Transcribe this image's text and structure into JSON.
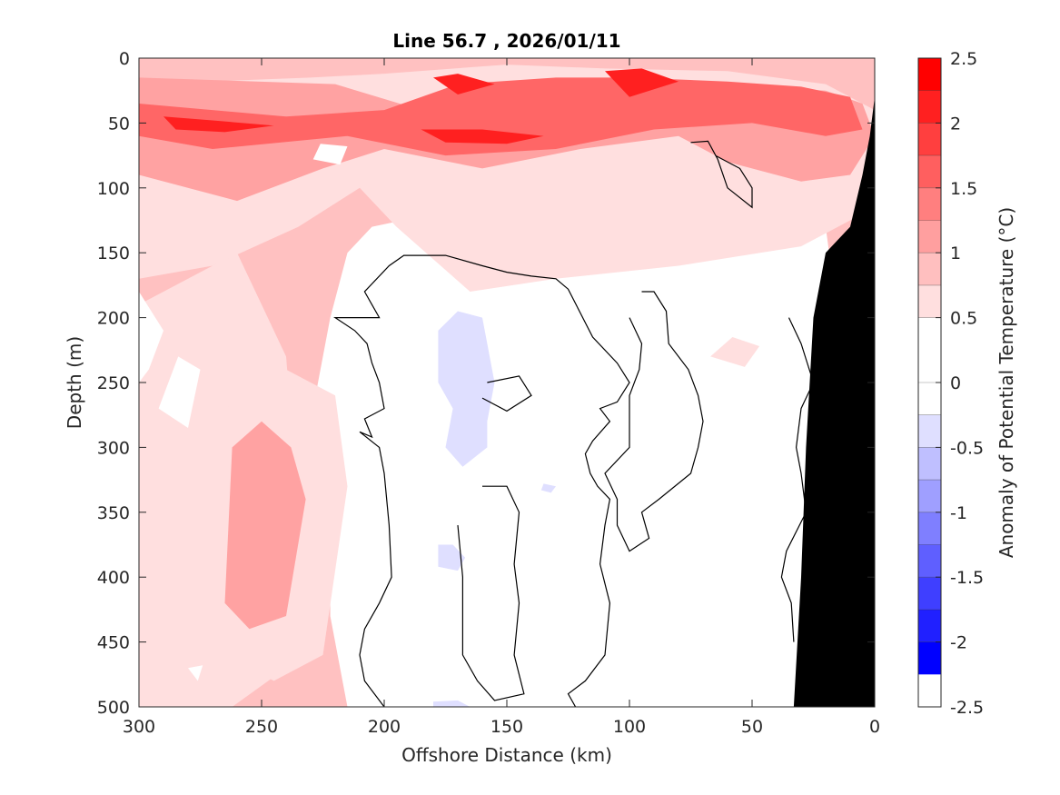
{
  "chart_data": {
    "type": "heatmap",
    "title": "Line 56.7 , 2026/01/11",
    "xlabel": "Offshore Distance (km)",
    "ylabel": "Depth (m)",
    "colorbar_label": "Anomaly of Potential Temperature (°C)",
    "xlim": [
      300,
      0
    ],
    "ylim": [
      0,
      500
    ],
    "x_reversed": true,
    "y_reversed": true,
    "xticks": [
      300,
      250,
      200,
      150,
      100,
      50,
      0
    ],
    "yticks": [
      0,
      50,
      100,
      150,
      200,
      250,
      300,
      350,
      400,
      450,
      500
    ],
    "xtick_labels": [
      "300",
      "250",
      "200",
      "150",
      "100",
      "50",
      "0"
    ],
    "ytick_labels": [
      "0",
      "50",
      "100",
      "150",
      "200",
      "250",
      "300",
      "350",
      "400",
      "450",
      "500"
    ],
    "colorbar": {
      "range": [
        -2.5,
        2.5
      ],
      "step": 0.25,
      "tick_values": [
        2.5,
        2,
        1.5,
        1,
        0.5,
        0,
        -0.5,
        -1,
        -1.5,
        -2,
        -2.5
      ],
      "tick_labels": [
        "2.5",
        "2",
        "1.5",
        "1",
        "0.5",
        "0",
        "-0.5",
        "-1",
        "-1.5",
        "-2",
        "-2.5"
      ],
      "colors": [
        "#ff0000",
        "#ff2020",
        "#ff3f3f",
        "#ff5f5f",
        "#ff7f7f",
        "#ff9f9f",
        "#ffbfbf",
        "#ffdfdf",
        "#ffffff",
        "#ffffff",
        "#dfdfff",
        "#bfbfff",
        "#9f9fff",
        "#7f7fff",
        "#5f5fff",
        "#3f3fff",
        "#2020ff",
        "#0000ff"
      ]
    },
    "regions": [
      {
        "level": 0.5,
        "points": [
          [
            300,
            20
          ],
          [
            230,
            15
          ],
          [
            200,
            12
          ],
          [
            150,
            5
          ],
          [
            110,
            8
          ],
          [
            60,
            10
          ],
          [
            20,
            20
          ],
          [
            0,
            40
          ],
          [
            5,
            120
          ],
          [
            30,
            145
          ],
          [
            80,
            160
          ],
          [
            130,
            170
          ],
          [
            165,
            180
          ],
          [
            195,
            130
          ],
          [
            210,
            100
          ],
          [
            235,
            130
          ],
          [
            270,
            160
          ],
          [
            300,
            170
          ]
        ]
      },
      {
        "level": 0.5,
        "points": [
          [
            240,
            240
          ],
          [
            265,
            270
          ],
          [
            275,
            420
          ],
          [
            265,
            460
          ],
          [
            245,
            480
          ],
          [
            225,
            460
          ],
          [
            215,
            330
          ],
          [
            220,
            260
          ]
        ]
      },
      {
        "level": 0.5,
        "points": [
          [
            58,
            215
          ],
          [
            47,
            222
          ],
          [
            53,
            238
          ],
          [
            67,
            230
          ]
        ]
      },
      {
        "level": 1.0,
        "points": [
          [
            300,
            15
          ],
          [
            220,
            20
          ],
          [
            185,
            40
          ],
          [
            150,
            30
          ],
          [
            120,
            18
          ],
          [
            70,
            20
          ],
          [
            20,
            25
          ],
          [
            5,
            35
          ],
          [
            0,
            60
          ],
          [
            10,
            90
          ],
          [
            30,
            95
          ],
          [
            60,
            80
          ],
          [
            80,
            60
          ],
          [
            120,
            70
          ],
          [
            160,
            85
          ],
          [
            200,
            70
          ],
          [
            225,
            85
          ],
          [
            260,
            110
          ],
          [
            300,
            90
          ]
        ]
      },
      {
        "level": 1.0,
        "points": [
          [
            250,
            280
          ],
          [
            262,
            300
          ],
          [
            265,
            420
          ],
          [
            255,
            440
          ],
          [
            240,
            430
          ],
          [
            232,
            340
          ],
          [
            238,
            300
          ]
        ]
      },
      {
        "level": 1.5,
        "points": [
          [
            300,
            35
          ],
          [
            240,
            45
          ],
          [
            200,
            40
          ],
          [
            170,
            20
          ],
          [
            130,
            15
          ],
          [
            100,
            15
          ],
          [
            60,
            18
          ],
          [
            30,
            22
          ],
          [
            10,
            30
          ],
          [
            5,
            55
          ],
          [
            20,
            60
          ],
          [
            50,
            50
          ],
          [
            90,
            55
          ],
          [
            130,
            70
          ],
          [
            175,
            75
          ],
          [
            215,
            60
          ],
          [
            270,
            70
          ],
          [
            300,
            60
          ]
        ]
      },
      {
        "level": 2.0,
        "points": [
          [
            290,
            45
          ],
          [
            270,
            48
          ],
          [
            245,
            52
          ],
          [
            265,
            57
          ],
          [
            285,
            55
          ]
        ]
      },
      {
        "level": 2.0,
        "points": [
          [
            185,
            55
          ],
          [
            160,
            55
          ],
          [
            135,
            60
          ],
          [
            150,
            66
          ],
          [
            175,
            65
          ]
        ]
      },
      {
        "level": 2.0,
        "points": [
          [
            180,
            15
          ],
          [
            170,
            12
          ],
          [
            155,
            20
          ],
          [
            170,
            28
          ]
        ]
      },
      {
        "level": 2.0,
        "points": [
          [
            110,
            10
          ],
          [
            95,
            8
          ],
          [
            80,
            18
          ],
          [
            100,
            30
          ]
        ]
      },
      {
        "level": 0.0,
        "points": [
          [
            300,
            180
          ],
          [
            290,
            210
          ],
          [
            296,
            240
          ],
          [
            300,
            250
          ]
        ]
      },
      {
        "level": 0.0,
        "points": [
          [
            284,
            230
          ],
          [
            275,
            240
          ],
          [
            280,
            285
          ],
          [
            292,
            270
          ]
        ]
      },
      {
        "level": 0.0,
        "points": [
          [
            226,
            66
          ],
          [
            215,
            68
          ],
          [
            218,
            82
          ],
          [
            229,
            78
          ]
        ]
      },
      {
        "level": 0.0,
        "points": [
          [
            280,
            470
          ],
          [
            274,
            468
          ],
          [
            276,
            480
          ]
        ]
      },
      {
        "level": 0.0,
        "points": [
          [
            215,
            192
          ],
          [
            211,
            194
          ],
          [
            214,
            208
          ]
        ]
      },
      {
        "level": -0.5,
        "points": [
          [
            170,
            195
          ],
          [
            178,
            210
          ],
          [
            178,
            250
          ],
          [
            172,
            270
          ],
          [
            175,
            300
          ],
          [
            168,
            315
          ],
          [
            158,
            300
          ],
          [
            158,
            280
          ],
          [
            155,
            250
          ],
          [
            160,
            200
          ]
        ]
      },
      {
        "level": -0.5,
        "points": [
          [
            178,
            375
          ],
          [
            172,
            375
          ],
          [
            167,
            385
          ],
          [
            170,
            395
          ],
          [
            178,
            392
          ]
        ]
      },
      {
        "level": -0.5,
        "points": [
          [
            135,
            328
          ],
          [
            130,
            330
          ],
          [
            132,
            335
          ],
          [
            136,
            333
          ]
        ]
      },
      {
        "level": -0.5,
        "points": [
          [
            180,
            496
          ],
          [
            170,
            495
          ],
          [
            165,
            500
          ],
          [
            180,
            500
          ]
        ]
      }
    ],
    "contours_zero": [
      [
        [
          200,
          500
        ],
        [
          208,
          480
        ],
        [
          210,
          460
        ],
        [
          208,
          440
        ],
        [
          202,
          420
        ],
        [
          197,
          400
        ],
        [
          198,
          360
        ],
        [
          200,
          320
        ],
        [
          202,
          300
        ],
        [
          210,
          288
        ],
        [
          205,
          292
        ],
        [
          208,
          278
        ],
        [
          200,
          270
        ],
        [
          202,
          250
        ],
        [
          205,
          235
        ],
        [
          207,
          220
        ],
        [
          212,
          210
        ],
        [
          220,
          200
        ],
        [
          202,
          200
        ],
        [
          205,
          190
        ],
        [
          208,
          180
        ],
        [
          198,
          160
        ],
        [
          192,
          152
        ],
        [
          175,
          152
        ],
        [
          160,
          160
        ],
        [
          150,
          165
        ],
        [
          140,
          168
        ],
        [
          130,
          170
        ],
        [
          125,
          178
        ],
        [
          115,
          215
        ],
        [
          105,
          235
        ],
        [
          100,
          250
        ],
        [
          105,
          265
        ],
        [
          112,
          270
        ],
        [
          108,
          280
        ],
        [
          115,
          295
        ],
        [
          118,
          305
        ],
        [
          116,
          320
        ],
        [
          113,
          330
        ],
        [
          108,
          340
        ],
        [
          110,
          360
        ],
        [
          112,
          390
        ],
        [
          108,
          420
        ],
        [
          110,
          460
        ],
        [
          118,
          480
        ],
        [
          125,
          490
        ],
        [
          122,
          500
        ]
      ],
      [
        [
          35,
          200
        ],
        [
          30,
          220
        ],
        [
          25,
          250
        ],
        [
          30,
          270
        ],
        [
          32,
          300
        ],
        [
          30,
          320
        ],
        [
          28,
          350
        ],
        [
          36,
          380
        ],
        [
          38,
          400
        ],
        [
          34,
          420
        ],
        [
          33,
          450
        ]
      ],
      [
        [
          158,
          250
        ],
        [
          145,
          245
        ],
        [
          140,
          260
        ],
        [
          150,
          272
        ],
        [
          160,
          262
        ]
      ],
      [
        [
          160,
          330
        ],
        [
          150,
          330
        ],
        [
          145,
          350
        ],
        [
          147,
          390
        ],
        [
          145,
          420
        ],
        [
          147,
          460
        ],
        [
          143,
          490
        ],
        [
          155,
          495
        ],
        [
          162,
          480
        ],
        [
          168,
          460
        ],
        [
          168,
          400
        ],
        [
          170,
          360
        ]
      ],
      [
        [
          95,
          180
        ],
        [
          90,
          180
        ],
        [
          85,
          195
        ],
        [
          84,
          220
        ],
        [
          76,
          240
        ],
        [
          72,
          260
        ],
        [
          70,
          280
        ],
        [
          72,
          300
        ],
        [
          75,
          320
        ],
        [
          88,
          340
        ],
        [
          95,
          350
        ],
        [
          92,
          370
        ],
        [
          100,
          380
        ],
        [
          105,
          360
        ],
        [
          105,
          340
        ],
        [
          110,
          320
        ],
        [
          100,
          300
        ],
        [
          100,
          280
        ],
        [
          100,
          260
        ],
        [
          96,
          240
        ],
        [
          95,
          220
        ],
        [
          100,
          200
        ]
      ],
      [
        [
          75,
          65
        ],
        [
          68,
          64
        ],
        [
          64,
          78
        ],
        [
          60,
          100
        ],
        [
          50,
          115
        ],
        [
          50,
          100
        ],
        [
          55,
          85
        ],
        [
          65,
          75
        ]
      ]
    ],
    "bathymetry": [
      [
        0,
        30
      ],
      [
        2,
        60
      ],
      [
        5,
        90
      ],
      [
        10,
        130
      ],
      [
        20,
        150
      ],
      [
        25,
        200
      ],
      [
        28,
        300
      ],
      [
        30,
        400
      ],
      [
        33,
        500
      ],
      [
        0,
        500
      ]
    ]
  }
}
